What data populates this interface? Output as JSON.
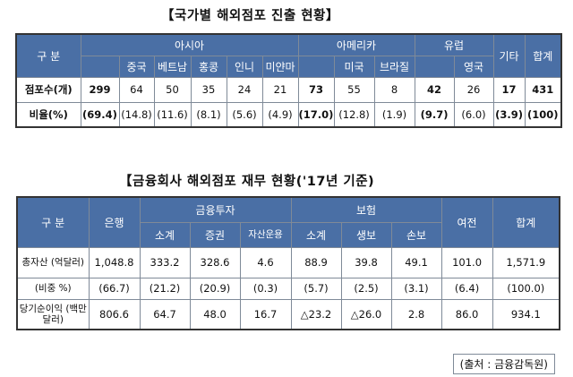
{
  "table1": {
    "title": "【국가별 해외점포 진출 현황】",
    "header": {
      "category": "구  분",
      "asia": "아시아",
      "america": "아메리카",
      "europe": "유럽",
      "other": "기타",
      "total": "합계",
      "sub": {
        "china": "중국",
        "vietnam": "베트남",
        "hongkong": "홍콩",
        "india": "인니",
        "myanmar": "미얀마",
        "usa": "미국",
        "brazil": "브라질",
        "uk": "영국"
      }
    },
    "rows": [
      {
        "label": "점포수(개)",
        "asia": "299",
        "china": "64",
        "vietnam": "50",
        "hongkong": "35",
        "india": "24",
        "myanmar": "21",
        "america": "73",
        "usa": "55",
        "brazil": "8",
        "europe": "42",
        "uk": "26",
        "other": "17",
        "total": "431"
      },
      {
        "label": "비율(%)",
        "asia": "(69.4)",
        "china": "(14.8)",
        "vietnam": "(11.6)",
        "hongkong": "(8.1)",
        "india": "(5.6)",
        "myanmar": "(4.9)",
        "america": "(17.0)",
        "usa": "(12.8)",
        "brazil": "(1.9)",
        "europe": "(9.7)",
        "uk": "(6.0)",
        "other": "(3.9)",
        "total": "(100)"
      }
    ]
  },
  "table2": {
    "title": "【금융회사 해외점포 재무 현황('17년 기준)",
    "header": {
      "category": "구 분",
      "bank": "은행",
      "invest": "금융투자",
      "insurance": "보험",
      "credit": "여전",
      "total": "합계",
      "sub": {
        "inv_subtotal": "소계",
        "securities": "증권",
        "asset_mgmt": "자산운용",
        "ins_subtotal": "소계",
        "life": "생보",
        "nonlife": "손보"
      }
    },
    "rows": [
      {
        "label": "총자산 (억달러)",
        "bank": "1,048.8",
        "inv_subtotal": "333.2",
        "securities": "328.6",
        "asset_mgmt": "4.6",
        "ins_subtotal": "88.9",
        "life": "39.8",
        "nonlife": "49.1",
        "credit": "101.0",
        "total": "1,571.9"
      },
      {
        "label": "(비중 %)",
        "bank": "(66.7)",
        "inv_subtotal": "(21.2)",
        "securities": "(20.9)",
        "asset_mgmt": "(0.3)",
        "ins_subtotal": "(5.7)",
        "life": "(2.5)",
        "nonlife": "(3.1)",
        "credit": "(6.4)",
        "total": "(100.0)"
      },
      {
        "label": "당기순이익 (백만달러)",
        "bank": "806.6",
        "inv_subtotal": "64.7",
        "securities": "48.0",
        "asset_mgmt": "16.7",
        "ins_subtotal": "△23.2",
        "life": "△26.0",
        "nonlife": "2.8",
        "credit": "86.0",
        "total": "934.1"
      }
    ]
  },
  "source": "(출처 : 금융감독원)"
}
